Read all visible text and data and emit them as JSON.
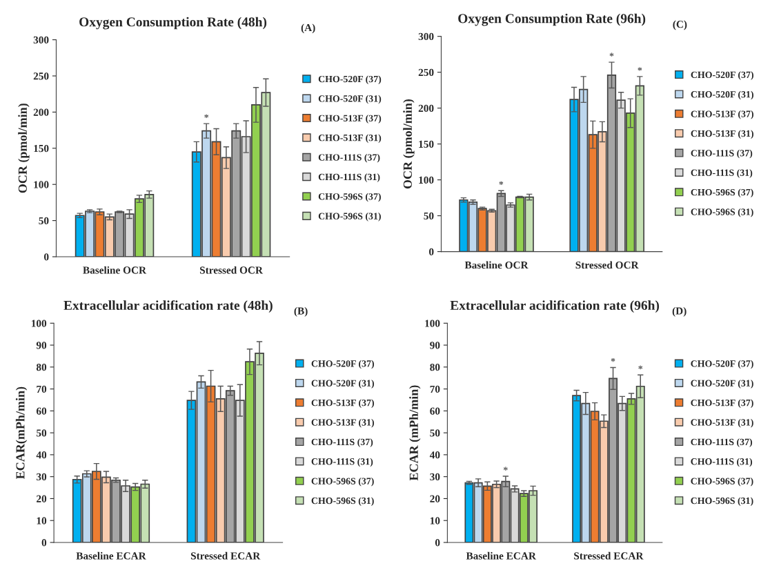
{
  "chart_data": [
    {
      "type": "bar",
      "title": "Oxygen Consumption Rate (48h)",
      "ylabel": "OCR (pmol/min)",
      "categories": [
        "Baseline OCR",
        "Stressed OCR"
      ],
      "ylim": [
        0,
        300
      ],
      "yticks": [
        0,
        50,
        100,
        150,
        200,
        250,
        300
      ],
      "legend": "right",
      "grid": false,
      "annotations": [
        "(A)",
        {
          "text": "*",
          "x": "Stressed OCR",
          "y": 174
        }
      ],
      "series": [
        {
          "name": "CHO-520F (37)",
          "color": "#00b0f0",
          "values": [
            57,
            145
          ],
          "errors": [
            3,
            14
          ]
        },
        {
          "name": "CHO-520F (31)",
          "color": "#bdd7ee",
          "values": [
            63,
            174
          ],
          "errors": [
            2,
            10
          ]
        },
        {
          "name": "CHO-513F (37)",
          "color": "#ed7d31",
          "values": [
            62,
            159
          ],
          "errors": [
            4,
            18
          ]
        },
        {
          "name": "CHO-513F (31)",
          "color": "#f8cbad",
          "values": [
            55,
            137
          ],
          "errors": [
            4,
            15
          ]
        },
        {
          "name": "CHO-111S (37)",
          "color": "#a5a5a5",
          "values": [
            62,
            174
          ],
          "errors": [
            1,
            10
          ]
        },
        {
          "name": "CHO-111S (31)",
          "color": "#d9d9d9",
          "values": [
            59,
            166
          ],
          "errors": [
            6,
            22
          ]
        },
        {
          "name": "CHO-596S (37)",
          "color": "#92d050",
          "values": [
            80,
            210
          ],
          "errors": [
            5,
            24
          ]
        },
        {
          "name": "CHO-596S (31)",
          "color": "#c5e0b4",
          "values": [
            86,
            227
          ],
          "errors": [
            5,
            19
          ]
        }
      ]
    },
    {
      "type": "bar",
      "title": "Oxygen Consumption Rate (96h)",
      "ylabel": "OCR (pmol/min)",
      "categories": [
        "Baseline OCR",
        "Stressed OCR"
      ],
      "ylim": [
        0,
        300
      ],
      "yticks": [
        0,
        50,
        100,
        150,
        200,
        250,
        300
      ],
      "legend": "right",
      "grid": false,
      "annotations": [
        "(C)",
        {
          "text": "*",
          "x": "Baseline OCR",
          "y": 81
        },
        {
          "text": "*",
          "x": "Stressed OCR",
          "y": 246
        },
        "*"
      ],
      "series": [
        {
          "name": "CHO-520F (37)",
          "color": "#00b0f0",
          "values": [
            72,
            212
          ],
          "errors": [
            3,
            17
          ]
        },
        {
          "name": "CHO-520F (31)",
          "color": "#bdd7ee",
          "values": [
            69,
            226
          ],
          "errors": [
            3,
            18
          ]
        },
        {
          "name": "CHO-513F (37)",
          "color": "#ed7d31",
          "values": [
            60,
            163
          ],
          "errors": [
            2,
            19
          ]
        },
        {
          "name": "CHO-513F (31)",
          "color": "#f8cbad",
          "values": [
            57,
            167
          ],
          "errors": [
            2,
            14
          ]
        },
        {
          "name": "CHO-111S (37)",
          "color": "#a5a5a5",
          "values": [
            81,
            246
          ],
          "errors": [
            4,
            18
          ]
        },
        {
          "name": "CHO-111S (31)",
          "color": "#d9d9d9",
          "values": [
            65,
            211
          ],
          "errors": [
            3,
            11
          ]
        },
        {
          "name": "CHO-596S (37)",
          "color": "#92d050",
          "values": [
            76,
            193
          ],
          "errors": [
            1,
            20
          ]
        },
        {
          "name": "CHO-596S (31)",
          "color": "#c5e0b4",
          "values": [
            76,
            231
          ],
          "errors": [
            4,
            13
          ]
        }
      ]
    },
    {
      "type": "bar",
      "title": "Extracellular acidification rate (48h)",
      "ylabel": "ECAR(mPh/min)",
      "categories": [
        "Baseline ECAR",
        "Stressed ECAR"
      ],
      "ylim": [
        0,
        100
      ],
      "yticks": [
        0,
        10,
        20,
        30,
        40,
        50,
        60,
        70,
        80,
        90,
        100
      ],
      "legend": "right",
      "grid": false,
      "annotations": [
        "(B)"
      ],
      "series": [
        {
          "name": "CHO-520F (37)",
          "color": "#00b0f0",
          "values": [
            28.7,
            64.8
          ],
          "errors": [
            1.6,
            4.1
          ]
        },
        {
          "name": "CHO-520F (31)",
          "color": "#bdd7ee",
          "values": [
            31.3,
            73.2
          ],
          "errors": [
            1.4,
            2.8
          ]
        },
        {
          "name": "CHO-513F (37)",
          "color": "#ed7d31",
          "values": [
            32.4,
            71.3
          ],
          "errors": [
            3.6,
            7.2
          ]
        },
        {
          "name": "CHO-513F (31)",
          "color": "#f8cbad",
          "values": [
            29.8,
            65.5
          ],
          "errors": [
            2.6,
            5.8
          ]
        },
        {
          "name": "CHO-111S (37)",
          "color": "#a5a5a5",
          "values": [
            28.4,
            69.2
          ],
          "errors": [
            1.0,
            2.1
          ]
        },
        {
          "name": "CHO-111S (31)",
          "color": "#d9d9d9",
          "values": [
            25.8,
            64.8
          ],
          "errors": [
            2.6,
            7.2
          ]
        },
        {
          "name": "CHO-596S (37)",
          "color": "#92d050",
          "values": [
            25.3,
            82.4
          ],
          "errors": [
            1.6,
            5.8
          ]
        },
        {
          "name": "CHO-596S (31)",
          "color": "#c5e0b4",
          "values": [
            26.6,
            86.3
          ],
          "errors": [
            1.8,
            5.3
          ]
        }
      ]
    },
    {
      "type": "bar",
      "title": "Extracellular acidification rate (96h)",
      "ylabel": "ECAR (mPh/min)",
      "categories": [
        "Baseline ECAR",
        "Stressed ECAR"
      ],
      "ylim": [
        0,
        100
      ],
      "yticks": [
        0,
        10,
        20,
        30,
        40,
        50,
        60,
        70,
        80,
        90,
        100
      ],
      "legend": "right",
      "grid": false,
      "annotations": [
        "(D)",
        {
          "text": "*",
          "x": "Baseline ECAR",
          "y": 27.8
        },
        {
          "text": "*",
          "x": "Stressed ECAR",
          "y": 74.8
        },
        "*"
      ],
      "series": [
        {
          "name": "CHO-520F (37)",
          "color": "#00b0f0",
          "values": [
            27.2,
            67.0
          ],
          "errors": [
            0.7,
            2.4
          ]
        },
        {
          "name": "CHO-520F (31)",
          "color": "#bdd7ee",
          "values": [
            27.2,
            63.4
          ],
          "errors": [
            1.8,
            5.0
          ]
        },
        {
          "name": "CHO-513F (37)",
          "color": "#ed7d31",
          "values": [
            25.7,
            59.8
          ],
          "errors": [
            1.9,
            3.9
          ]
        },
        {
          "name": "CHO-513F (31)",
          "color": "#f8cbad",
          "values": [
            26.5,
            55.3
          ],
          "errors": [
            1.5,
            2.9
          ]
        },
        {
          "name": "CHO-111S (37)",
          "color": "#a5a5a5",
          "values": [
            27.8,
            74.8
          ],
          "errors": [
            2.4,
            5.0
          ]
        },
        {
          "name": "CHO-111S (31)",
          "color": "#d9d9d9",
          "values": [
            24.4,
            63.4
          ],
          "errors": [
            1.4,
            3.2
          ]
        },
        {
          "name": "CHO-596S (37)",
          "color": "#92d050",
          "values": [
            22.3,
            65.5
          ],
          "errors": [
            1.3,
            2.5
          ]
        },
        {
          "name": "CHO-596S (31)",
          "color": "#c5e0b4",
          "values": [
            23.6,
            71.2
          ],
          "errors": [
            2.1,
            5.2
          ]
        }
      ]
    }
  ]
}
